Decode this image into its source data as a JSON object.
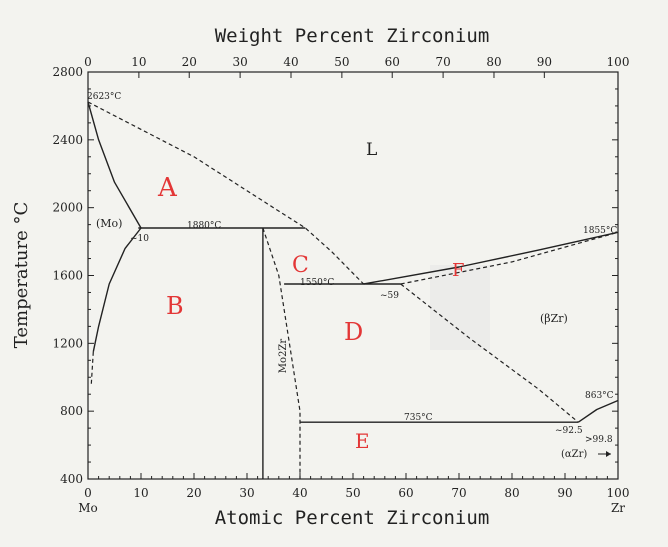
{
  "chart_data": {
    "type": "phase-diagram",
    "title": "",
    "top_axis": {
      "label": "Weight Percent Zirconium",
      "ticks": [
        0,
        10,
        20,
        30,
        40,
        50,
        60,
        70,
        80,
        90,
        100
      ],
      "tick_at_at_pct": [
        0,
        9.6,
        19.1,
        28.7,
        38.3,
        47.9,
        57.4,
        67.0,
        76.6,
        86.1,
        100
      ]
    },
    "bottom_axis": {
      "label": "Atomic Percent Zirconium",
      "ticks": [
        0,
        10,
        20,
        30,
        40,
        50,
        60,
        70,
        80,
        90,
        100
      ],
      "xlim": [
        0,
        100
      ],
      "left_end_label": "Mo",
      "right_end_label": "Zr"
    },
    "y_axis": {
      "label": "Temperature °C",
      "ticks": [
        400,
        800,
        1200,
        1600,
        2000,
        2400,
        2800
      ],
      "ylim": [
        400,
        2800
      ]
    },
    "text_labels": {
      "mo_melt": "2623°C",
      "liquid": "L",
      "mo_phase": "(Mo)",
      "mo_solvus_comp": "~10",
      "peritectic_t": "1880°C",
      "eutectic_t": "1550°C",
      "eutectic_comp": "~59",
      "zr_melt": "1855°C",
      "beta_zr": "(βZr)",
      "eutectoid_t": "735°C",
      "eutectoid_comp": "~92.5",
      "zr_transition": "863°C",
      "alpha_solubility": ">99.8",
      "alpha_zr": "(αZr)",
      "compound": "Mo2Zr"
    },
    "region_marks": {
      "A": "A",
      "B": "B",
      "C": "C",
      "D": "D",
      "E": "E",
      "F": "F"
    },
    "lines": {
      "solid": [
        {
          "name": "mo-liquidus-left",
          "points": [
            [
              0,
              2623
            ],
            [
              2,
              2400
            ],
            [
              5,
              2150
            ],
            [
              10,
              1880
            ]
          ]
        },
        {
          "name": "mo-solvus",
          "points": [
            [
              10,
              1880
            ],
            [
              7,
              1760
            ],
            [
              4,
              1550
            ],
            [
              2,
              1300
            ],
            [
              1,
              1150
            ]
          ]
        },
        {
          "name": "peritectic-1880",
          "points": [
            [
              9.5,
              1880
            ],
            [
              41,
              1880
            ]
          ]
        },
        {
          "name": "mo2zr-line",
          "points": [
            [
              33,
              1880
            ],
            [
              33,
              400
            ]
          ]
        },
        {
          "name": "eutectic-1550",
          "points": [
            [
              37,
              1550
            ],
            [
              59,
              1550
            ]
          ]
        },
        {
          "name": "zr-liquidus-solid",
          "points": [
            [
              52,
              1550
            ],
            [
              70,
              1650
            ],
            [
              85,
              1750
            ],
            [
              100,
              1855
            ]
          ]
        },
        {
          "name": "eutectoid-735",
          "points": [
            [
              40,
              735
            ],
            [
              92.5,
              735
            ]
          ]
        },
        {
          "name": "alpha-beta-transus",
          "points": [
            [
              92.5,
              735
            ],
            [
              96,
              810
            ],
            [
              100,
              863
            ]
          ]
        }
      ],
      "dashed": [
        {
          "name": "mo-liquidus-dashed",
          "points": [
            [
              0,
              2623
            ],
            [
              20,
              2300
            ],
            [
              35,
              2000
            ],
            [
              41,
              1880
            ],
            [
              46,
              1740
            ],
            [
              52,
              1550
            ]
          ]
        },
        {
          "name": "zr-liquidus-dashed",
          "points": [
            [
              59,
              1550
            ],
            [
              80,
              1680
            ],
            [
              100,
              1855
            ]
          ]
        },
        {
          "name": "beta-solvus-dashed",
          "points": [
            [
              59,
              1550
            ],
            [
              72,
              1230
            ],
            [
              85,
              930
            ],
            [
              92.5,
              735
            ]
          ]
        },
        {
          "name": "mo-solvus-dotted",
          "points": [
            [
              1,
              1150
            ],
            [
              0.6,
              950
            ]
          ]
        },
        {
          "name": "mo2zr-right-boundary",
          "points": [
            [
              33,
              1880
            ],
            [
              36,
              1600
            ],
            [
              38,
              1200
            ],
            [
              40,
              800
            ],
            [
              40,
              400
            ]
          ]
        }
      ]
    }
  }
}
